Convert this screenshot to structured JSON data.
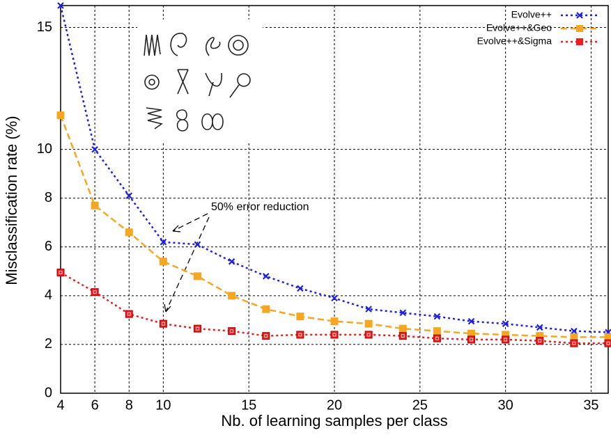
{
  "chart_data": {
    "type": "line",
    "xlabel": "Nb. of learning samples per class",
    "ylabel": "Misclassification rate (%)",
    "x": [
      4,
      6,
      8,
      10,
      12,
      14,
      16,
      18,
      20,
      22,
      24,
      26,
      28,
      30,
      32,
      34,
      36
    ],
    "series": [
      {
        "name": "Evolve++",
        "color": "#1f1fe0",
        "marker": "x",
        "linestyle": "dotted",
        "values": [
          15.9,
          10.0,
          8.1,
          6.2,
          6.1,
          5.4,
          4.8,
          4.3,
          3.9,
          3.45,
          3.3,
          3.15,
          2.95,
          2.85,
          2.7,
          2.55,
          2.5
        ]
      },
      {
        "name": "Evolve++&Geo",
        "color": "#f5a623",
        "marker": "square",
        "linestyle": "dashed",
        "values": [
          11.4,
          7.7,
          6.6,
          5.4,
          4.8,
          4.0,
          3.45,
          3.15,
          2.95,
          2.85,
          2.65,
          2.55,
          2.45,
          2.4,
          2.35,
          2.3,
          2.3
        ]
      },
      {
        "name": "Evolve++&Sigma",
        "color": "#ee1c1c",
        "marker": "square-open",
        "linestyle": "dotted",
        "values": [
          4.95,
          4.15,
          3.25,
          2.85,
          2.65,
          2.55,
          2.35,
          2.4,
          2.4,
          2.4,
          2.35,
          2.25,
          2.2,
          2.2,
          2.15,
          2.05,
          2.05
        ]
      }
    ],
    "xlim": [
      4,
      36
    ],
    "xticks": [
      4,
      6,
      8,
      10,
      15,
      20,
      25,
      30,
      35
    ],
    "ylim": [
      0,
      15.9
    ],
    "yticks": [
      0,
      2,
      4,
      6,
      8,
      10,
      15
    ],
    "grid": true,
    "legend": "upper right",
    "annotation": "50% error reduction"
  }
}
